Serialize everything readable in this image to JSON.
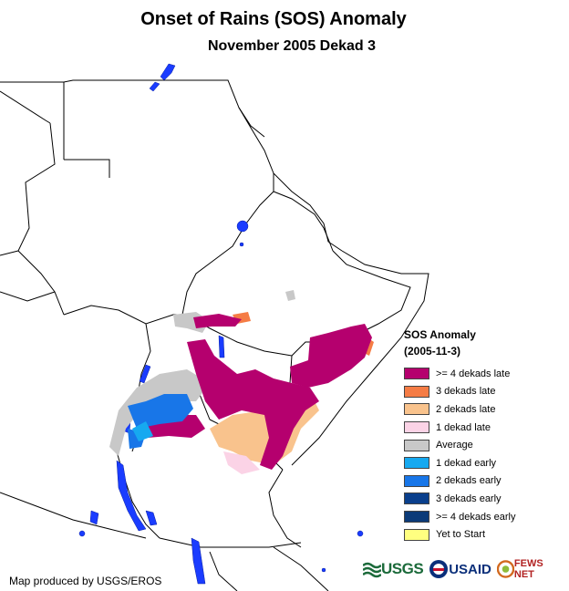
{
  "header": {
    "title": "Onset of Rains (SOS) Anomaly",
    "subtitle": "November 2005 Dekad 3"
  },
  "legend": {
    "title_line1": "SOS Anomaly",
    "title_line2": "(2005-11-3)",
    "items": [
      {
        "label": ">= 4 dekads late",
        "color": "#b5006e"
      },
      {
        "label": "3 dekads late",
        "color": "#f57c45"
      },
      {
        "label": "2 dekads late",
        "color": "#f9c38d"
      },
      {
        "label": "1 dekad late",
        "color": "#fbd3e6"
      },
      {
        "label": "Average",
        "color": "#c8c8c8"
      },
      {
        "label": "1 dekad early",
        "color": "#16a9f0"
      },
      {
        "label": "2 dekads early",
        "color": "#1876e8"
      },
      {
        "label": "3 dekads early",
        "color": "#0a3f8c"
      },
      {
        "label": ">= 4 dekads early",
        "color": "#0b3a78"
      },
      {
        "label": "Yet to Start",
        "color": "#ffff80"
      }
    ]
  },
  "footer": {
    "credit": "Map produced by USGS/EROS",
    "logos": {
      "usgs": "USGS",
      "usaid": "USAID",
      "fews": "FEWS NET"
    }
  }
}
